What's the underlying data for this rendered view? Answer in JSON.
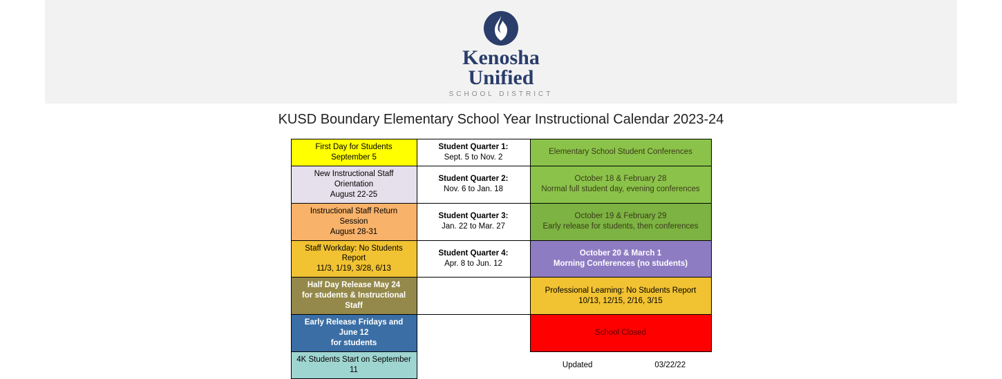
{
  "logo": {
    "line1": "Kenosha",
    "line2": "Unified",
    "sub": "SCHOOL DISTRICT"
  },
  "title": "KUSD Boundary Elementary School Year Instructional Calendar 2023-24",
  "colors": {
    "yellow": "#ffff00",
    "lavender": "#e6e0ec",
    "orange": "#f8b26a",
    "gold": "#f1c232",
    "olive": "#94894a",
    "steelblue": "#3a6ea5",
    "teal": "#9fd5d1",
    "green": "#8bc34a",
    "green2": "#7cb342",
    "purple": "#8e7cc3",
    "red": "#ff0000",
    "white": "#ffffff",
    "text_dark": "#000000",
    "text_dark2": "#3b3b1a",
    "text_white": "#ffffff",
    "text_darkred": "#5c0000"
  },
  "rows": [
    {
      "left": {
        "bg": "yellow",
        "fg": "text_dark",
        "t1": "First Day for Students",
        "t2": "September 5"
      },
      "mid": {
        "t1": "Student Quarter 1:",
        "t2": "Sept. 5 to Nov. 2"
      },
      "right": {
        "bg": "green",
        "fg": "text_dark2",
        "t1": "Elementary School Student Conferences"
      }
    },
    {
      "left": {
        "bg": "lavender",
        "fg": "text_dark",
        "t1": "New Instructional Staff Orientation",
        "t2": "August 22-25"
      },
      "mid": {
        "t1": "Student Quarter 2:",
        "t2": "Nov. 6 to Jan. 18"
      },
      "right": {
        "bg": "green",
        "fg": "text_dark2",
        "t1": "October 18 & February 28",
        "t2": "Normal full student day, evening conferences"
      }
    },
    {
      "left": {
        "bg": "orange",
        "fg": "text_dark",
        "t1": "Instructional Staff Return Session",
        "t2": "August 28-31"
      },
      "mid": {
        "t1": "Student Quarter 3:",
        "t2": "Jan. 22 to Mar. 27"
      },
      "right": {
        "bg": "green2",
        "fg": "text_dark2",
        "t1": "October 19 & February 29",
        "t2": "Early release for students, then conferences"
      }
    },
    {
      "left": {
        "bg": "gold",
        "fg": "text_dark",
        "t1": "Staff Workday: No Students Report",
        "t2": "11/3, 1/19, 3/28, 6/13"
      },
      "mid": {
        "t1": "Student Quarter 4:",
        "t2": "Apr. 8 to Jun. 12"
      },
      "right": {
        "bg": "purple",
        "fg": "text_white",
        "t1": "October 20 & March 1",
        "t2": "Morning Conferences (no students)",
        "bold": true
      }
    },
    {
      "left": {
        "bg": "olive",
        "fg": "text_white",
        "t1": "Half Day Release May 24",
        "t2": "for students & Instructional Staff",
        "bold": true
      },
      "mid": {
        "empty": true
      },
      "right": {
        "bg": "gold",
        "fg": "text_dark",
        "t1": "Professional Learning: No Students Report",
        "t2": "10/13, 12/15, 2/16, 3/15"
      }
    },
    {
      "left": {
        "bg": "steelblue",
        "fg": "text_white",
        "t1": "Early Release Fridays and June 12",
        "t2": "for students",
        "bold": true
      },
      "mid": {
        "blank": true
      },
      "right": {
        "bg": "red",
        "fg": "text_darkred",
        "t1": "School Closed"
      }
    },
    {
      "left": {
        "bg": "teal",
        "fg": "text_dark",
        "t1": "4K Students Start on September 11"
      },
      "mid": {
        "blank": true
      },
      "right": {
        "noborder": true,
        "updated_label": "Updated",
        "updated_date": "03/22/22"
      }
    }
  ]
}
